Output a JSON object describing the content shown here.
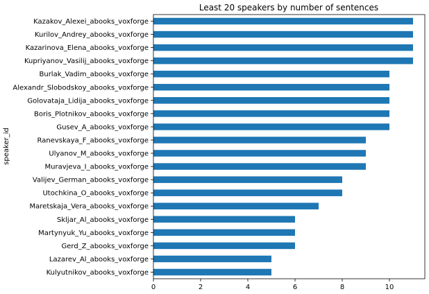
{
  "chart_data": {
    "type": "bar",
    "orientation": "horizontal",
    "title": "Least 20 speakers by number of sentences",
    "ylabel": "speaker_id",
    "xlabel": "",
    "xlim": [
      0,
      11.5
    ],
    "xticks": [
      0,
      2,
      4,
      6,
      8,
      10
    ],
    "grid": false,
    "bar_color": "#1f77b4",
    "categories": [
      "Kazakov_Alexei_abooks_voxforge",
      "Kurilov_Andrey_abooks_voxforge",
      "Kazarinova_Elena_abooks_voxforge",
      "Kupriyanov_Vasilij_abooks_voxforge",
      "Burlak_Vadim_abooks_voxforge",
      "Alexandr_Slobodskoy_abooks_voxforge",
      "Golovataja_Lidija_abooks_voxforge",
      "Boris_Plotnikov_abooks_voxforge",
      "Gusev_A_abooks_voxforge",
      "Ranevskaya_F_abooks_voxforge",
      "Ulyanov_M_abooks_voxforge",
      "Muravjeva_I_abooks_voxforge",
      "Valijev_German_abooks_voxforge",
      "Utochkina_O_abooks_voxforge",
      "Maretskaja_Vera_abooks_voxforge",
      "Skljar_Al_abooks_voxforge",
      "Martynyuk_Yu_abooks_voxforge",
      "Gerd_Z_abooks_voxforge",
      "Lazarev_Al_abooks_voxforge",
      "Kulyutnikov_abooks_voxforge"
    ],
    "values": [
      11,
      11,
      11,
      11,
      10,
      10,
      10,
      10,
      10,
      9,
      9,
      9,
      8,
      8,
      7,
      6,
      6,
      6,
      5,
      5
    ]
  }
}
